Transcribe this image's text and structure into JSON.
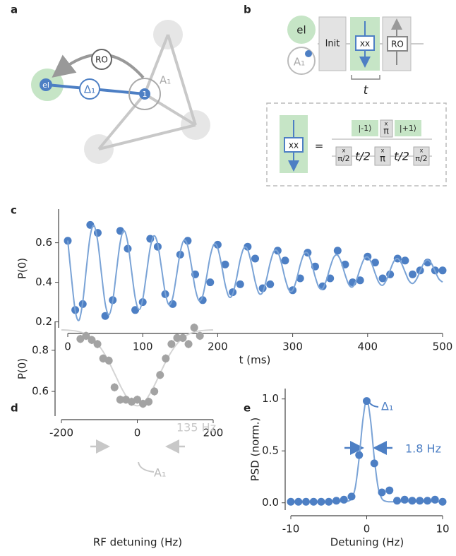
{
  "panel_labels": [
    "a",
    "b",
    "c",
    "d",
    "e"
  ],
  "diagram_a": {
    "el": "el",
    "ro": "RO",
    "delta": "Δ₁",
    "nucleus": "1",
    "nucleus_label": "A₁"
  },
  "diagram_b": {
    "el": "el",
    "nucleus": "A₁",
    "init": "Init",
    "block": "xx",
    "ro": "RO",
    "time": "t",
    "inset": {
      "block": "xx",
      "equals": "=",
      "state_minus": "|-1⟩",
      "state_plus": "|+1⟩",
      "pulse_axis": "x",
      "pi": "π",
      "row2": [
        "π/2",
        "t/2",
        "π",
        "t/2",
        "π/2"
      ]
    }
  },
  "chart_data": [
    {
      "type": "scatter",
      "x_label": "t (ms)",
      "y_label": "P(0)",
      "xlim": [
        0,
        500
      ],
      "ylim": [
        0.17,
        0.77
      ],
      "xticks": [
        0,
        100,
        200,
        300,
        400,
        500
      ],
      "yticks": [
        0.2,
        0.4,
        0.6
      ],
      "series": [
        {
          "mode": "markers",
          "color": "#4d7fc4",
          "x": [
            0,
            10,
            20,
            30,
            40,
            50,
            60,
            70,
            80,
            90,
            100,
            110,
            120,
            130,
            140,
            150,
            160,
            170,
            180,
            190,
            200,
            210,
            220,
            230,
            240,
            250,
            260,
            270,
            280,
            290,
            300,
            310,
            320,
            330,
            340,
            350,
            360,
            370,
            380,
            390,
            400,
            410,
            420,
            430,
            440,
            450,
            460,
            470,
            480,
            490,
            500
          ],
          "values": [
            0.61,
            0.26,
            0.29,
            0.69,
            0.65,
            0.23,
            0.31,
            0.66,
            0.57,
            0.26,
            0.3,
            0.62,
            0.58,
            0.34,
            0.29,
            0.54,
            0.61,
            0.44,
            0.31,
            0.4,
            0.59,
            0.49,
            0.35,
            0.39,
            0.58,
            0.52,
            0.37,
            0.39,
            0.56,
            0.51,
            0.36,
            0.42,
            0.55,
            0.48,
            0.38,
            0.42,
            0.56,
            0.49,
            0.4,
            0.41,
            0.53,
            0.5,
            0.42,
            0.44,
            0.52,
            0.51,
            0.44,
            0.46,
            0.5,
            0.46,
            0.46
          ],
          "errors": [
            0.015,
            0.015,
            0.015,
            0.015,
            0.015,
            0.015,
            0.015,
            0.015,
            0.015,
            0.015,
            0.015,
            0.015,
            0.015,
            0.015,
            0.015,
            0.015,
            0.015,
            0.015,
            0.015,
            0.015,
            0.015,
            0.015,
            0.015,
            0.015,
            0.015,
            0.015,
            0.015,
            0.015,
            0.015,
            0.015,
            0.015,
            0.015,
            0.015,
            0.015,
            0.015,
            0.015,
            0.015,
            0.015,
            0.015,
            0.015,
            0.015,
            0.015,
            0.015,
            0.015,
            0.015,
            0.015,
            0.015,
            0.015,
            0.015,
            0.015,
            0.015
          ]
        },
        {
          "mode": "lines",
          "color": "#7aa3d6",
          "x": [
            0,
            5,
            10,
            15,
            20,
            25,
            30,
            35,
            40,
            45,
            50,
            55,
            60,
            65,
            70,
            75,
            80,
            85,
            90,
            95,
            100,
            105,
            110,
            115,
            120,
            125,
            130,
            135,
            140,
            145,
            150,
            155,
            160,
            165,
            170,
            175,
            180,
            185,
            190,
            195,
            200,
            205,
            210,
            215,
            220,
            225,
            230,
            235,
            240,
            245,
            250,
            255,
            260,
            265,
            270,
            275,
            280,
            285,
            290,
            295,
            300,
            305,
            310,
            315,
            320,
            325,
            330,
            335,
            340,
            345,
            350,
            355,
            360,
            365,
            370,
            375,
            380,
            385,
            390,
            395,
            400,
            405,
            410,
            415,
            420,
            425,
            430,
            435,
            440,
            445,
            450,
            455,
            460,
            465,
            470,
            475,
            480,
            485,
            490,
            495,
            500
          ],
          "values": [
            0.611,
            0.421,
            0.256,
            0.208,
            0.301,
            0.477,
            0.636,
            0.687,
            0.606,
            0.443,
            0.291,
            0.236,
            0.306,
            0.458,
            0.603,
            0.661,
            0.601,
            0.46,
            0.321,
            0.262,
            0.314,
            0.443,
            0.575,
            0.635,
            0.593,
            0.473,
            0.347,
            0.286,
            0.322,
            0.432,
            0.552,
            0.613,
            0.584,
            0.483,
            0.369,
            0.308,
            0.331,
            0.423,
            0.531,
            0.592,
            0.574,
            0.49,
            0.388,
            0.327,
            0.34,
            0.417,
            0.514,
            0.574,
            0.565,
            0.495,
            0.404,
            0.345,
            0.35,
            0.414,
            0.498,
            0.557,
            0.555,
            0.497,
            0.418,
            0.361,
            0.359,
            0.411,
            0.487,
            0.542,
            0.547,
            0.499,
            0.429,
            0.375,
            0.368,
            0.411,
            0.476,
            0.528,
            0.537,
            0.5,
            0.438,
            0.388,
            0.377,
            0.411,
            0.468,
            0.516,
            0.528,
            0.499,
            0.446,
            0.399,
            0.385,
            0.411,
            0.461,
            0.506,
            0.52,
            0.497,
            0.452,
            0.409,
            0.394,
            0.414,
            0.456,
            0.497,
            0.513,
            0.496,
            0.456,
            0.417,
            0.401
          ]
        }
      ]
    },
    {
      "type": "scatter",
      "x_label": "RF detuning (Hz)",
      "y_label": "P(0)",
      "xlim": [
        -200,
        200
      ],
      "ylim": [
        0.48,
        0.94
      ],
      "xticks": [
        -200,
        0,
        200
      ],
      "yticks": [
        0.6,
        0.8
      ],
      "annotations": [
        "135 Hz",
        "A₁"
      ],
      "series": [
        {
          "mode": "lines",
          "color": "#d4d4d4",
          "x": [
            -200,
            -180,
            -160,
            -140,
            -120,
            -100,
            -80,
            -60,
            -40,
            -20,
            0,
            20,
            40,
            60,
            80,
            100,
            120,
            140,
            160,
            180,
            200
          ],
          "values": [
            0.899,
            0.897,
            0.893,
            0.882,
            0.86,
            0.82,
            0.762,
            0.687,
            0.611,
            0.552,
            0.53,
            0.552,
            0.611,
            0.687,
            0.762,
            0.82,
            0.86,
            0.882,
            0.893,
            0.897,
            0.899
          ]
        },
        {
          "mode": "markers",
          "color": "#a3a3a3",
          "x": [
            -150,
            -135,
            -120,
            -105,
            -90,
            -75,
            -60,
            -45,
            -30,
            -15,
            0,
            15,
            30,
            45,
            60,
            75,
            90,
            105,
            120,
            135,
            150,
            165
          ],
          "values": [
            0.855,
            0.87,
            0.85,
            0.83,
            0.76,
            0.75,
            0.62,
            0.56,
            0.56,
            0.55,
            0.56,
            0.54,
            0.55,
            0.6,
            0.68,
            0.76,
            0.83,
            0.86,
            0.86,
            0.83,
            0.91,
            0.87
          ],
          "errors": [
            0.02,
            0.02,
            0.02,
            0.02,
            0.02,
            0.02,
            0.02,
            0.02,
            0.02,
            0.02,
            0.02,
            0.02,
            0.02,
            0.02,
            0.02,
            0.02,
            0.02,
            0.02,
            0.02,
            0.02,
            0.02,
            0.02
          ]
        }
      ]
    },
    {
      "type": "scatter",
      "x_label": "Detuning (Hz)",
      "y_label": "PSD (norm.)",
      "xlim": [
        -10,
        10
      ],
      "ylim": [
        -0.07,
        1.1
      ],
      "xticks": [
        -10,
        0,
        10
      ],
      "yticks": [
        {
          "value": 0,
          "label": "0.0"
        },
        0.5,
        {
          "value": 1,
          "label": "1.0"
        }
      ],
      "annotations": [
        "Δ₁",
        "1.8 Hz"
      ],
      "series": [
        {
          "mode": "lines",
          "color": "#7aa3d6",
          "x": [
            -10,
            -4,
            -3,
            -2.5,
            -2,
            -1.5,
            -1,
            -0.5,
            0,
            0.5,
            1,
            1.5,
            2,
            2.5,
            3,
            4,
            10
          ],
          "values": [
            0.01,
            0.01,
            0.01,
            0.015,
            0.04,
            0.15,
            0.43,
            0.8,
            0.99,
            0.8,
            0.43,
            0.15,
            0.04,
            0.015,
            0.01,
            0.01,
            0.01
          ]
        },
        {
          "mode": "markers",
          "color": "#4d7fc4",
          "x": [
            -10,
            -9,
            -8,
            -7,
            -6,
            -5,
            -4,
            -3,
            -2,
            -1,
            0,
            1,
            2,
            3,
            4,
            5,
            6,
            7,
            8,
            9,
            10
          ],
          "values": [
            0.01,
            0.01,
            0.01,
            0.01,
            0.01,
            0.01,
            0.02,
            0.03,
            0.06,
            0.46,
            0.98,
            0.38,
            0.1,
            0.12,
            0.02,
            0.03,
            0.02,
            0.02,
            0.02,
            0.03,
            0.01
          ]
        }
      ]
    }
  ]
}
